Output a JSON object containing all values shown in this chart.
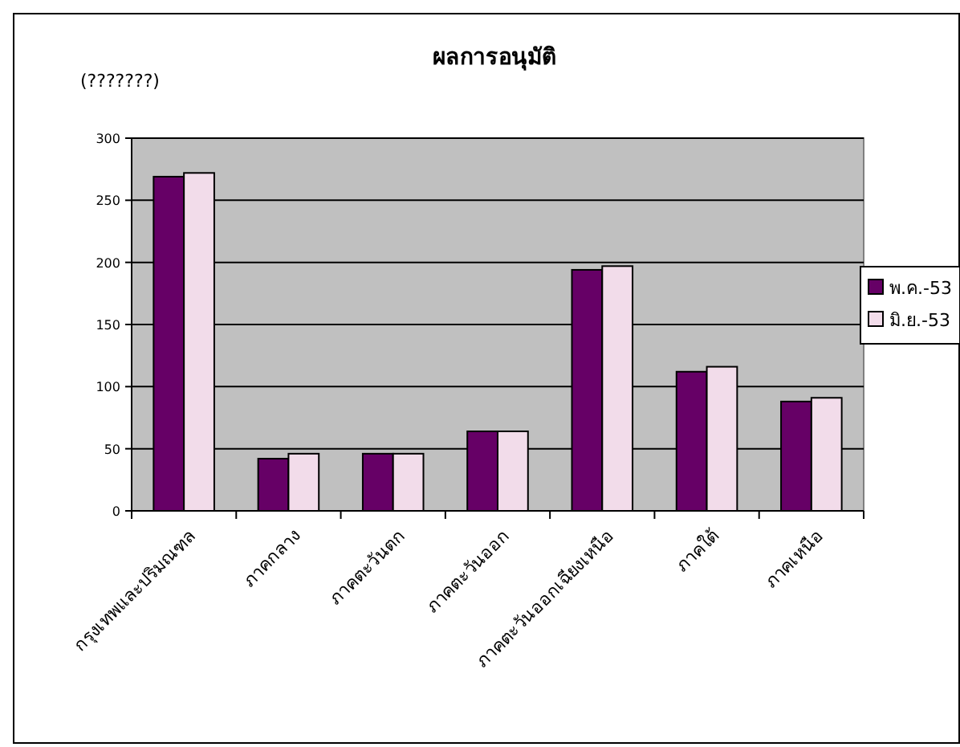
{
  "chart_data": {
    "type": "bar",
    "title": "ผลการอนุมัติ",
    "ylabel": "(???????)",
    "categories": [
      "กรุงเทพและปริมณฑล",
      "ภาคกลาง",
      "ภาคตะวันตก",
      "ภาคตะวันออก",
      "ภาคตะวันออกเฉียงเหนือ",
      "ภาคใต้",
      "ภาคเหนือ"
    ],
    "series": [
      {
        "name": "พ.ค.-53",
        "color": "#660066",
        "values": [
          269,
          42,
          46,
          64,
          194,
          112,
          88
        ]
      },
      {
        "name": "มิ.ย.-53",
        "color": "#f2dcea",
        "values": [
          272,
          46,
          46,
          64,
          197,
          116,
          91
        ]
      }
    ],
    "ylim": [
      0,
      300
    ],
    "yticks": [
      0,
      50,
      100,
      150,
      200,
      250,
      300
    ],
    "grid": "y",
    "legend": "right"
  }
}
